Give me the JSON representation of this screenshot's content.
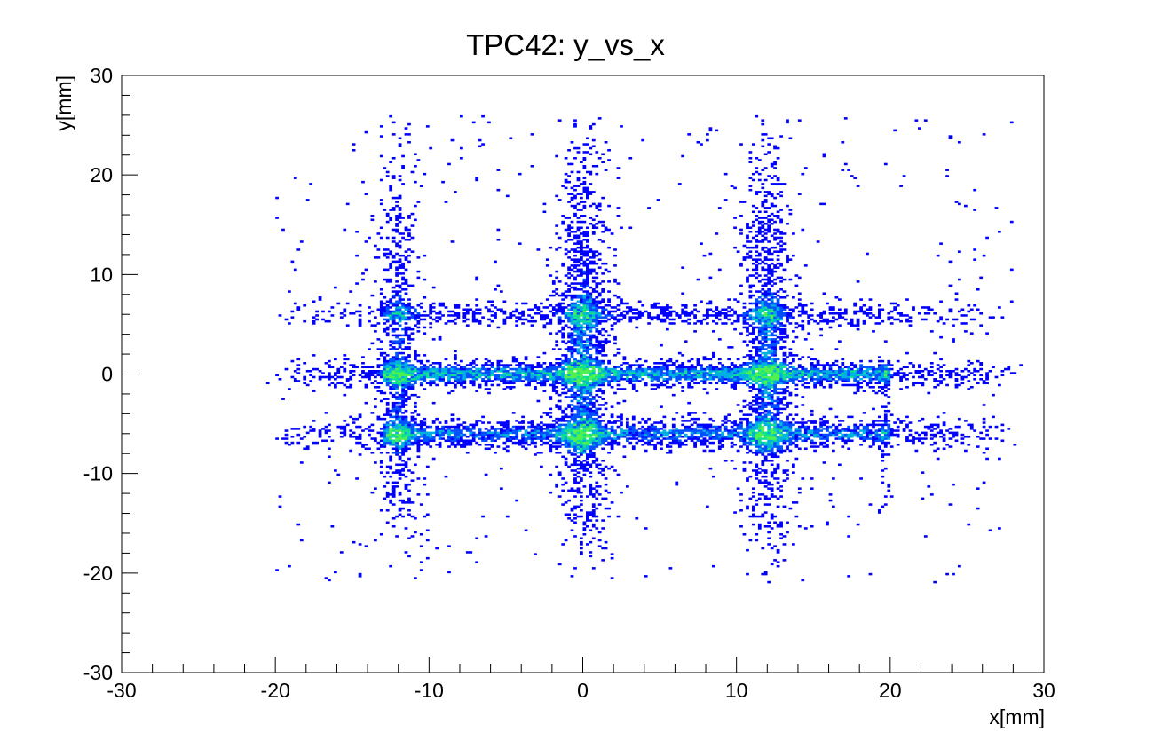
{
  "chart_data": {
    "type": "heatmap",
    "title": "TPC42: y_vs_x",
    "xlabel": "x[mm]",
    "ylabel": "y[mm]",
    "xlim": [
      -30,
      30
    ],
    "ylim": [
      -30,
      30
    ],
    "x_ticks": [
      -30,
      -20,
      -10,
      0,
      10,
      20,
      30
    ],
    "y_ticks": [
      -30,
      -20,
      -10,
      0,
      10,
      20,
      30
    ],
    "grid": false,
    "colors": {
      "sparse": "#0000ff",
      "low": "#0050ff",
      "mid": "#00b0e0",
      "high": "#10e090",
      "peak": "#50f050"
    },
    "pattern": {
      "horizontal_bands_y": [
        6,
        0,
        -6
      ],
      "vertical_bands_x": [
        -12,
        0,
        12
      ],
      "bands_x_extent": [
        -21,
        29
      ],
      "vertical_bands_y_extent": [
        -21,
        27
      ]
    }
  }
}
